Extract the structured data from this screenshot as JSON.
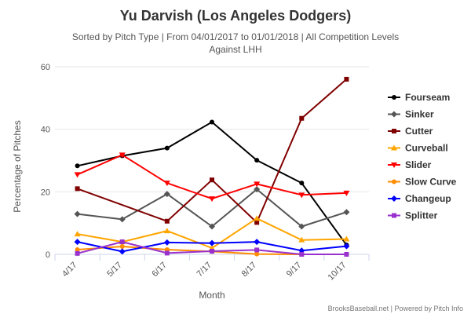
{
  "chart_data": {
    "type": "line",
    "title": "Yu Darvish (Los Angeles Dodgers)",
    "subtitle_line1": "Sorted by Pitch Type | From 04/01/2017 to 01/01/2018 | All Competition Levels",
    "subtitle_line2": "Against LHH",
    "xlabel": "Month",
    "ylabel": "Percentage of Pitches",
    "ylim": [
      0,
      60
    ],
    "yticks": [
      "0",
      "20",
      "40",
      "60"
    ],
    "categories": [
      "4/17",
      "5/17",
      "6/17",
      "7/17",
      "8/17",
      "9/17",
      "10/17"
    ],
    "series": [
      {
        "name": "Fourseam",
        "color": "#000000",
        "marker": "circle",
        "values": [
          28.3,
          31.5,
          34.0,
          42.3,
          30.1,
          22.8,
          3.0
        ]
      },
      {
        "name": "Sinker",
        "color": "#555555",
        "marker": "diamond",
        "values": [
          12.9,
          11.2,
          19.3,
          8.9,
          20.8,
          8.9,
          13.5
        ]
      },
      {
        "name": "Cutter",
        "color": "#800000",
        "marker": "square",
        "values": [
          21.0,
          null,
          10.6,
          23.8,
          10.2,
          43.5,
          56.0
        ]
      },
      {
        "name": "Curveball",
        "color": "#FFA500",
        "marker": "triangle",
        "values": [
          6.5,
          4.0,
          7.5,
          2.0,
          11.5,
          4.6,
          4.9
        ]
      },
      {
        "name": "Slider",
        "color": "#FF0000",
        "marker": "triangle-down",
        "values": [
          25.5,
          31.8,
          22.8,
          17.8,
          22.5,
          19.0,
          19.6
        ]
      },
      {
        "name": "Slow Curve",
        "color": "#FF8C00",
        "marker": "circle",
        "values": [
          1.5,
          2.5,
          1.5,
          0.9,
          0.1,
          0.0,
          0.0
        ]
      },
      {
        "name": "Changeup",
        "color": "#0000FF",
        "marker": "diamond",
        "values": [
          4.0,
          0.9,
          3.8,
          3.6,
          4.0,
          1.2,
          2.6
        ]
      },
      {
        "name": "Splitter",
        "color": "#9932CC",
        "marker": "square",
        "values": [
          0.3,
          4.0,
          0.4,
          1.0,
          1.4,
          0.0,
          0.0
        ]
      }
    ],
    "credits": "BrooksBaseball.net | Powered by Pitch Info"
  }
}
